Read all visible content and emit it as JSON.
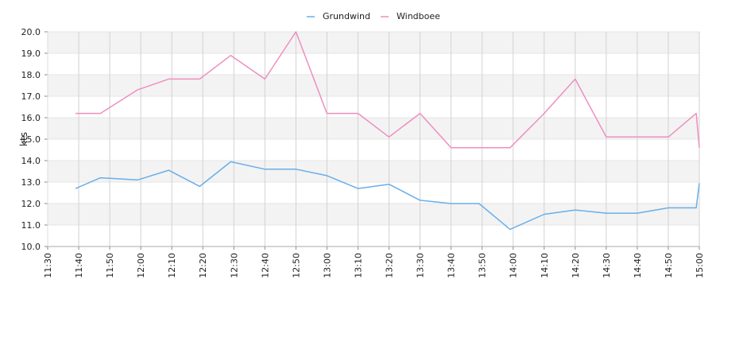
{
  "chart_data": {
    "type": "line",
    "title": "",
    "xlabel": "",
    "ylabel": "kts",
    "ylim": [
      10.0,
      20.0
    ],
    "yticks": [
      "10.0",
      "11.0",
      "12.0",
      "13.0",
      "14.0",
      "15.0",
      "16.0",
      "17.0",
      "18.0",
      "19.0",
      "20.0"
    ],
    "xlim": [
      "11:30",
      "15:00"
    ],
    "xticks": [
      "11:30",
      "11:40",
      "11:50",
      "12:00",
      "12:10",
      "12:20",
      "12:30",
      "12:40",
      "12:50",
      "13:00",
      "13:10",
      "13:20",
      "13:30",
      "13:40",
      "13:50",
      "14:00",
      "14:10",
      "14:20",
      "14:30",
      "14:40",
      "14:50",
      "15:00"
    ],
    "grid": true,
    "legend_position": "top-center",
    "series": [
      {
        "name": "Grundwind",
        "color": "#6aaee8",
        "x": [
          "11:39",
          "11:47",
          "11:59",
          "12:09",
          "12:19",
          "12:29",
          "12:40",
          "12:50",
          "13:00",
          "13:10",
          "13:20",
          "13:30",
          "13:40",
          "13:49",
          "13:59",
          "14:10",
          "14:20",
          "14:30",
          "14:40",
          "14:50",
          "14:59",
          "15:00"
        ],
        "y": [
          12.7,
          13.2,
          13.1,
          13.55,
          12.8,
          13.95,
          13.6,
          13.6,
          13.3,
          12.7,
          12.9,
          12.15,
          12.0,
          12.0,
          10.8,
          11.5,
          11.7,
          11.55,
          11.55,
          11.8,
          11.8,
          12.95
        ]
      },
      {
        "name": "Windboee",
        "color": "#ee8fbf",
        "x": [
          "11:39",
          "11:47",
          "11:59",
          "12:09",
          "12:19",
          "12:29",
          "12:40",
          "12:50",
          "13:00",
          "13:10",
          "13:20",
          "13:30",
          "13:40",
          "13:49",
          "13:59",
          "14:10",
          "14:20",
          "14:30",
          "14:40",
          "14:50",
          "14:59",
          "15:00"
        ],
        "y": [
          16.2,
          16.2,
          17.3,
          17.8,
          17.8,
          18.9,
          17.8,
          20.0,
          16.2,
          16.2,
          15.1,
          16.2,
          14.6,
          14.6,
          14.6,
          16.2,
          17.8,
          15.1,
          15.1,
          15.1,
          16.2,
          14.6
        ]
      }
    ]
  }
}
